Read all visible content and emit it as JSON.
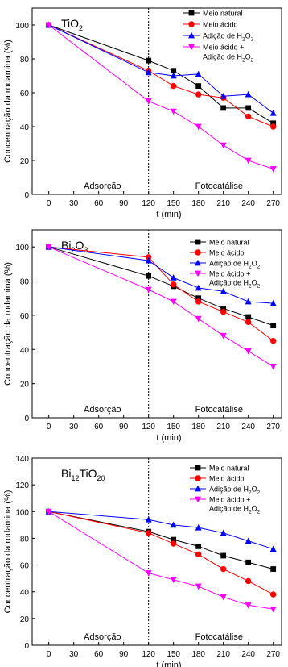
{
  "chart_data": [
    {
      "type": "line",
      "title": "TiO",
      "title_sub": "2",
      "xlabel": "t (min)",
      "ylabel": "Concentração da rodamina (%)",
      "xticks": [
        0,
        30,
        60,
        90,
        120,
        150,
        180,
        210,
        240,
        270
      ],
      "yticks": [
        0,
        20,
        40,
        60,
        80,
        100
      ],
      "xlim": [
        -20,
        280
      ],
      "ylim": [
        0,
        110
      ],
      "regions": [
        "Adsorção",
        "Fotocatálise"
      ],
      "divider_x": 120,
      "x": [
        0,
        120,
        150,
        180,
        210,
        240,
        270
      ],
      "series": [
        {
          "name": "Meio natural",
          "color": "#000000",
          "marker": "square",
          "values": [
            100,
            79,
            73,
            64,
            51,
            51,
            42
          ]
        },
        {
          "name": "Meio ácido",
          "color": "#ff0000",
          "marker": "circle",
          "values": [
            100,
            73,
            64,
            59,
            57,
            46,
            40
          ]
        },
        {
          "name": "Adição de H",
          "sub": "2",
          "suffix": "O",
          "sub2": "2",
          "color": "#0000ff",
          "marker": "triangle",
          "values": [
            100,
            72,
            70,
            71,
            58,
            59,
            48
          ]
        },
        {
          "name": "Meio ácido +",
          "line2": "Adição de  H",
          "sub": "2",
          "suffix": "O",
          "sub2": "2",
          "color": "#ff00ff",
          "marker": "tri-down",
          "values": [
            100,
            55,
            49,
            40,
            29,
            20,
            15
          ]
        }
      ]
    },
    {
      "type": "line",
      "title": "Bi",
      "title_sub": "2",
      "title_rest": "O",
      "title_sub2": "3",
      "xlabel": "t (min)",
      "ylabel": "Concentração da rodamina (%)",
      "xticks": [
        0,
        30,
        60,
        90,
        120,
        150,
        180,
        210,
        240,
        270
      ],
      "yticks": [
        0,
        20,
        40,
        60,
        80,
        100
      ],
      "xlim": [
        -20,
        280
      ],
      "ylim": [
        0,
        110
      ],
      "regions": [
        "Adsorção",
        "Fotocatálise"
      ],
      "divider_x": 120,
      "x": [
        0,
        120,
        150,
        180,
        210,
        240,
        270
      ],
      "series": [
        {
          "name": "Meio natural",
          "color": "#000000",
          "marker": "square",
          "values": [
            100,
            83,
            77,
            70,
            64,
            59,
            54
          ]
        },
        {
          "name": "Meio ácido",
          "color": "#ff0000",
          "marker": "circle",
          "values": [
            100,
            94,
            78,
            68,
            62,
            56,
            45
          ]
        },
        {
          "name": "Adição de H",
          "sub": "2",
          "suffix": "O",
          "sub2": "2",
          "color": "#0000ff",
          "marker": "triangle",
          "values": [
            100,
            92,
            82,
            76,
            74,
            68,
            67
          ]
        },
        {
          "name": "Meio ácido +",
          "line2": "Adição de  H",
          "sub": "2",
          "suffix": "O",
          "sub2": "2",
          "color": "#ff00ff",
          "marker": "tri-down",
          "values": [
            100,
            75,
            68,
            58,
            48,
            39,
            30
          ]
        }
      ]
    },
    {
      "type": "line",
      "title": "Bi",
      "title_sub": "12",
      "title_rest": "TiO",
      "title_sub2": "20",
      "xlabel": "t (min)",
      "ylabel": "Concentração da rodamina (%)",
      "xticks": [
        0,
        30,
        60,
        90,
        120,
        150,
        180,
        210,
        240,
        270
      ],
      "yticks": [
        0,
        20,
        40,
        60,
        80,
        100,
        120,
        140
      ],
      "xlim": [
        -20,
        280
      ],
      "ylim": [
        0,
        140
      ],
      "regions": [
        "Adsorção",
        "Fotocatálise"
      ],
      "divider_x": 120,
      "x": [
        0,
        120,
        150,
        180,
        210,
        240,
        270
      ],
      "series": [
        {
          "name": "Meio natural",
          "color": "#000000",
          "marker": "square",
          "values": [
            100,
            85,
            79,
            74,
            67,
            62,
            57
          ]
        },
        {
          "name": "Meio ácido",
          "color": "#ff0000",
          "marker": "circle",
          "values": [
            100,
            84,
            76,
            68,
            57,
            48,
            38
          ]
        },
        {
          "name": "Adição de H",
          "sub": "2",
          "suffix": "O",
          "sub2": "2",
          "color": "#0000ff",
          "marker": "triangle",
          "values": [
            100,
            94,
            90,
            88,
            84,
            78,
            72
          ]
        },
        {
          "name": "Meio ácido +",
          "line2": "Adição de  H",
          "sub": "2",
          "suffix": "O",
          "sub2": "2",
          "color": "#ff00ff",
          "marker": "tri-down",
          "values": [
            100,
            54,
            49,
            44,
            36,
            30,
            27
          ]
        }
      ]
    }
  ]
}
